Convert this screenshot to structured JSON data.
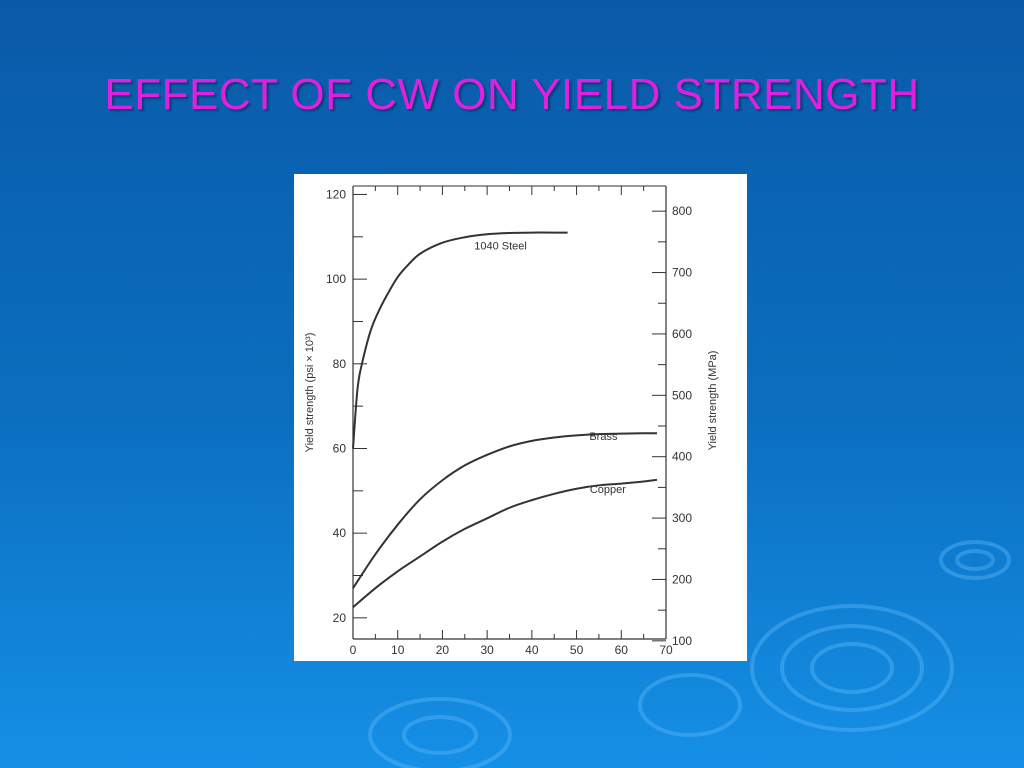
{
  "slide": {
    "title": "EFFECT OF CW ON YIELD STRENGTH"
  },
  "colors": {
    "title": "#e020e0",
    "background_top": "#0a5aa8",
    "background_bottom": "#1590e6",
    "curve": "#333333"
  },
  "chart_data": {
    "type": "line",
    "xlabel": "",
    "ylabel": "Yield strength (psi × 10³)",
    "ylabel_right": "Yield strength (MPa)",
    "xlim": [
      0,
      70
    ],
    "ylim": [
      15,
      122
    ],
    "y2lim": [
      103,
      841
    ],
    "x_ticks": [
      0,
      10,
      20,
      30,
      40,
      50,
      60,
      70
    ],
    "y_ticks": [
      20,
      40,
      60,
      80,
      100,
      120
    ],
    "y2_ticks": [
      100,
      200,
      300,
      400,
      500,
      600,
      700,
      800
    ],
    "grid": false,
    "series": [
      {
        "name": "1040 Steel",
        "x": [
          0,
          1,
          2,
          4,
          6,
          8,
          10,
          12,
          15,
          20,
          25,
          30,
          35,
          40,
          45,
          48
        ],
        "y": [
          60,
          74,
          80,
          88,
          93,
          97,
          100.5,
          103,
          106,
          108.6,
          109.9,
          110.6,
          110.9,
          111,
          111,
          111
        ]
      },
      {
        "name": "Brass",
        "x": [
          0,
          5,
          10,
          15,
          20,
          25,
          30,
          35,
          40,
          45,
          50,
          55,
          60,
          65,
          68
        ],
        "y": [
          27,
          35,
          42,
          48,
          52.5,
          56,
          58.5,
          60.5,
          61.8,
          62.6,
          63.1,
          63.4,
          63.5,
          63.6,
          63.6
        ]
      },
      {
        "name": "Copper",
        "x": [
          0,
          5,
          10,
          15,
          20,
          25,
          30,
          35,
          40,
          45,
          50,
          55,
          60,
          65,
          68
        ],
        "y": [
          22.5,
          27,
          31,
          34.5,
          38,
          41,
          43.5,
          46,
          47.8,
          49.3,
          50.5,
          51.3,
          51.7,
          52.2,
          52.6
        ]
      }
    ]
  }
}
